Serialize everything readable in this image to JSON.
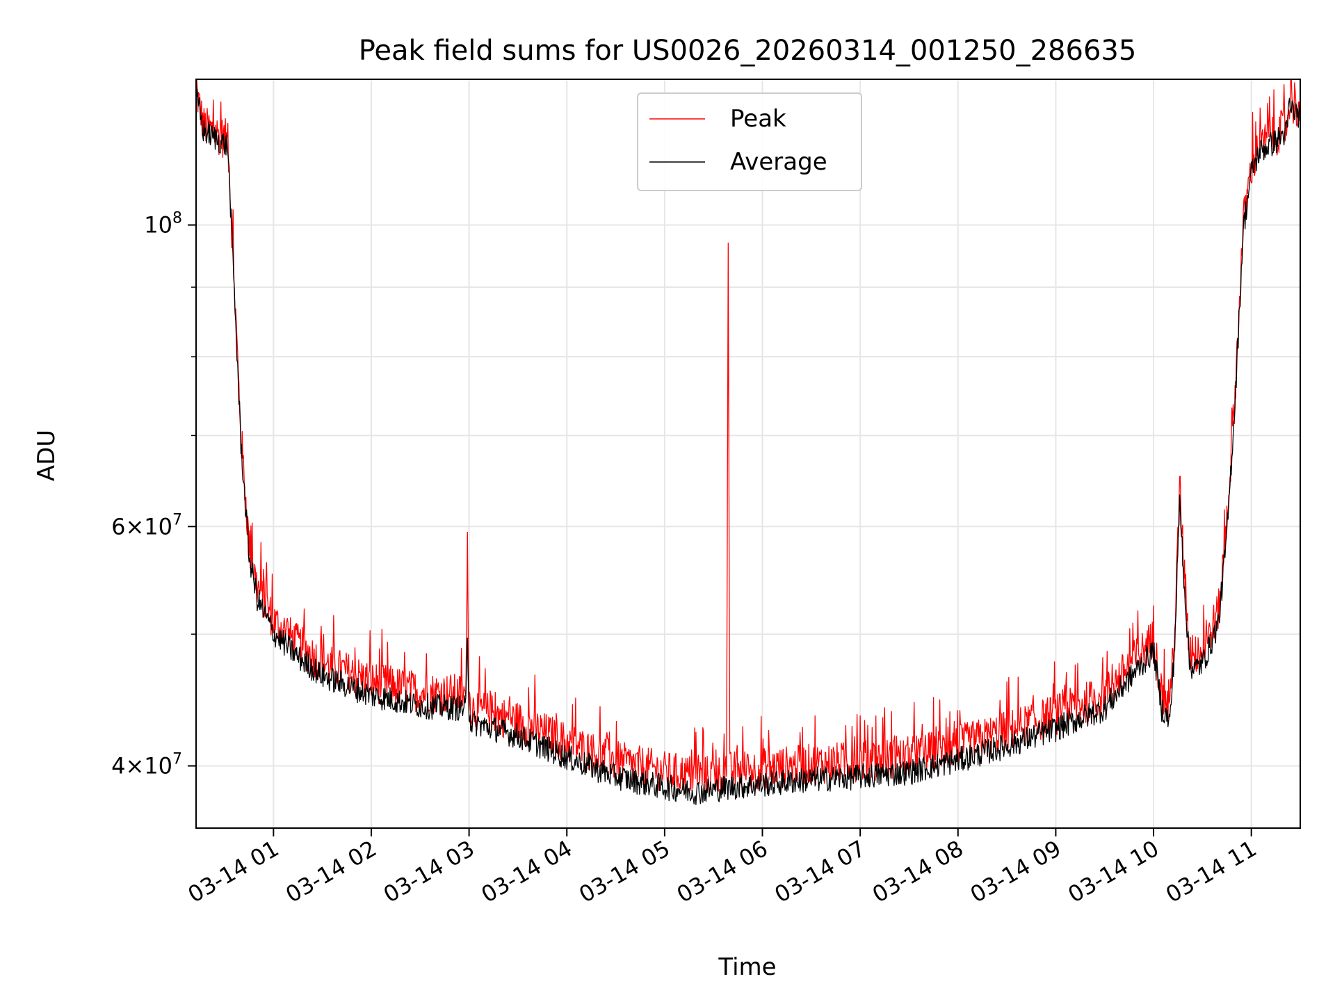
{
  "chart_data": {
    "type": "line",
    "title": "Peak field sums for US0026_20260314_001250_286635",
    "xlabel": "Time",
    "ylabel": "ADU",
    "yscale": "log",
    "ylim": [
      36000000,
      128000000
    ],
    "xlim": [
      "03-14 00:12:30",
      "03-14 11:30:00"
    ],
    "grid": true,
    "legend_position": "top-center",
    "x_tick_labels": [
      "03-14 01",
      "03-14 02",
      "03-14 03",
      "03-14 04",
      "03-14 05",
      "03-14 06",
      "03-14 07",
      "03-14 08",
      "03-14 09",
      "03-14 10",
      "03-14 11"
    ],
    "x_ticks": [
      "03-14 01:00",
      "03-14 02:00",
      "03-14 03:00",
      "03-14 04:00",
      "03-14 05:00",
      "03-14 06:00",
      "03-14 07:00",
      "03-14 08:00",
      "03-14 09:00",
      "03-14 10:00",
      "03-14 11:00"
    ],
    "y_tick_labels": [
      {
        "value": 100000000,
        "mantissa": "",
        "base": "10",
        "exp": "8"
      },
      {
        "value": 60000000,
        "mantissa": "6×",
        "base": "10",
        "exp": "7"
      },
      {
        "value": 40000000,
        "mantissa": "4×",
        "base": "10",
        "exp": "7"
      }
    ],
    "y_minor_ticks": [
      50000000,
      70000000,
      80000000,
      90000000
    ],
    "series": [
      {
        "name": "Peak",
        "color": "#ff0000",
        "x": [
          "03-14 00:12:30",
          "03-14 00:14:00",
          "03-14 00:17:00",
          "03-14 00:25:00",
          "03-14 00:32:00",
          "03-14 00:36:00",
          "03-14 00:40:00",
          "03-14 00:45:00",
          "03-14 00:50:00",
          "03-14 00:55:00",
          "03-14 01:00:00",
          "03-14 01:15:00",
          "03-14 01:30:00",
          "03-14 02:00:00",
          "03-14 02:30:00",
          "03-14 02:58:00",
          "03-14 02:59:00",
          "03-14 03:00:00",
          "03-14 03:01:00",
          "03-14 03:30:00",
          "03-14 04:00:00",
          "03-14 04:30:00",
          "03-14 05:00:00",
          "03-14 05:20:00",
          "03-14 05:38:00",
          "03-14 05:39:00",
          "03-14 05:40:00",
          "03-14 05:41:00",
          "03-14 06:00:00",
          "03-14 06:30:00",
          "03-14 07:00:00",
          "03-14 07:30:00",
          "03-14 08:00:00",
          "03-14 08:30:00",
          "03-14 09:00:00",
          "03-14 09:30:00",
          "03-14 09:50:00",
          "03-14 10:00:00",
          "03-14 10:05:00",
          "03-14 10:10:00",
          "03-14 10:13:00",
          "03-14 10:16:00",
          "03-14 10:19:00",
          "03-14 10:22:00",
          "03-14 10:25:00",
          "03-14 10:30:00",
          "03-14 10:35:00",
          "03-14 10:40:00",
          "03-14 10:45:00",
          "03-14 10:50:00",
          "03-14 10:55:00",
          "03-14 11:00:00",
          "03-14 11:05:00",
          "03-14 11:15:00",
          "03-14 11:22:00",
          "03-14 11:23:00",
          "03-14 11:30:00"
        ],
        "values": [
          125000000,
          123000000,
          118000000,
          116500000,
          115000000,
          90000000,
          70000000,
          58000000,
          54000000,
          52500000,
          51000000,
          49000000,
          47500000,
          46000000,
          45200000,
          45000000,
          57500000,
          45000000,
          44000000,
          43000000,
          41500000,
          40200000,
          39500000,
          39200000,
          39300000,
          97000000,
          39500000,
          39500000,
          39700000,
          40000000,
          40200000,
          40500000,
          41300000,
          42300000,
          43500000,
          45000000,
          48000000,
          49500000,
          45000000,
          44000000,
          50000000,
          63500000,
          55000000,
          48500000,
          48000000,
          48500000,
          50000000,
          52000000,
          60000000,
          75000000,
          100000000,
          110000000,
          114000000,
          116000000,
          118000000,
          123000000,
          121000000
        ]
      },
      {
        "name": "Average",
        "color": "#000000",
        "x": [
          "03-14 00:12:30",
          "03-14 00:14:00",
          "03-14 00:17:00",
          "03-14 00:25:00",
          "03-14 00:32:00",
          "03-14 00:36:00",
          "03-14 00:40:00",
          "03-14 00:45:00",
          "03-14 00:50:00",
          "03-14 00:55:00",
          "03-14 01:00:00",
          "03-14 01:15:00",
          "03-14 01:30:00",
          "03-14 02:00:00",
          "03-14 02:30:00",
          "03-14 02:58:00",
          "03-14 02:59:00",
          "03-14 03:00:00",
          "03-14 03:01:00",
          "03-14 03:30:00",
          "03-14 04:00:00",
          "03-14 04:30:00",
          "03-14 05:00:00",
          "03-14 05:20:00",
          "03-14 05:40:00",
          "03-14 06:00:00",
          "03-14 06:30:00",
          "03-14 07:00:00",
          "03-14 07:30:00",
          "03-14 08:00:00",
          "03-14 08:30:00",
          "03-14 09:00:00",
          "03-14 09:30:00",
          "03-14 09:50:00",
          "03-14 10:00:00",
          "03-14 10:05:00",
          "03-14 10:10:00",
          "03-14 10:13:00",
          "03-14 10:16:00",
          "03-14 10:19:00",
          "03-14 10:22:00",
          "03-14 10:25:00",
          "03-14 10:30:00",
          "03-14 10:35:00",
          "03-14 10:40:00",
          "03-14 10:45:00",
          "03-14 10:50:00",
          "03-14 10:55:00",
          "03-14 11:00:00",
          "03-14 11:05:00",
          "03-14 11:15:00",
          "03-14 11:22:00",
          "03-14 11:23:00",
          "03-14 11:30:00"
        ],
        "values": [
          124000000,
          122000000,
          117000000,
          115500000,
          114000000,
          89000000,
          69000000,
          57000000,
          53000000,
          51500000,
          50000000,
          48000000,
          46500000,
          45000000,
          44200000,
          44000000,
          50000000,
          44000000,
          43000000,
          42000000,
          40500000,
          39200000,
          38500000,
          38200000,
          38500000,
          38700000,
          39000000,
          39200000,
          39500000,
          40300000,
          41300000,
          42500000,
          44000000,
          47000000,
          48500000,
          44000000,
          43000000,
          49000000,
          62500000,
          54000000,
          47500000,
          47000000,
          47500000,
          49000000,
          51000000,
          59000000,
          74000000,
          99000000,
          109000000,
          113000000,
          115000000,
          117000000,
          122000000,
          120000000
        ]
      }
    ]
  }
}
